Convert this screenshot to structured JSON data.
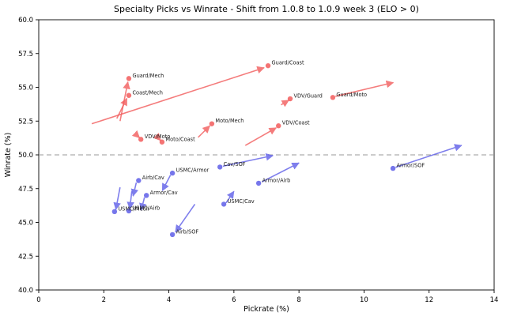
{
  "chart_data": {
    "type": "scatter",
    "title": "Specialty Picks vs Winrate - Shift from 1.0.8 to 1.0.9 week 3 (ELO > 0)",
    "xlabel": "Pickrate (%)",
    "ylabel": "Winrate (%)",
    "xlim": [
      0,
      14
    ],
    "ylim": [
      40.0,
      60.0
    ],
    "xticks": [
      0,
      2,
      4,
      6,
      8,
      10,
      12,
      14
    ],
    "yticks": [
      40.0,
      42.5,
      45.0,
      47.5,
      50.0,
      52.5,
      55.0,
      57.5,
      60.0
    ],
    "reference_line_y": 50.0,
    "legend_position": "none",
    "grid": false,
    "colors": {
      "above_50": "#f25c5c",
      "below_50": "#5e5ee8",
      "reference_line": "#999999",
      "axis": "#000000",
      "label_text": "#1a1a1a"
    },
    "points": [
      {
        "label": "Guard/Mech",
        "x": 2.77,
        "y": 55.65,
        "group": "above_50",
        "arrow": {
          "x1": 2.5,
          "y1": 52.5,
          "x2": 2.74,
          "y2": 55.4
        }
      },
      {
        "label": "Coast/Mech",
        "x": 2.77,
        "y": 54.4,
        "group": "above_50",
        "arrow": {
          "x1": 2.4,
          "y1": 52.7,
          "x2": 2.71,
          "y2": 54.18
        }
      },
      {
        "label": "Guard/Coast",
        "x": 7.05,
        "y": 56.6,
        "group": "above_50",
        "arrow": {
          "x1": 1.63,
          "y1": 52.3,
          "x2": 6.93,
          "y2": 56.45
        }
      },
      {
        "label": "VDV/Guard",
        "x": 7.73,
        "y": 54.15,
        "group": "above_50",
        "arrow": {
          "x1": 7.45,
          "y1": 53.7,
          "x2": 7.69,
          "y2": 54.05
        }
      },
      {
        "label": "Guard/Moto",
        "x": 9.04,
        "y": 54.25,
        "group": "above_50",
        "arrow": {
          "x1": 9.12,
          "y1": 54.33,
          "x2": 10.9,
          "y2": 55.35
        }
      },
      {
        "label": "Moto/Mech",
        "x": 5.32,
        "y": 52.3,
        "group": "above_50",
        "arrow": {
          "x1": 4.9,
          "y1": 51.3,
          "x2": 5.26,
          "y2": 52.15
        }
      },
      {
        "label": "VDV/Coast",
        "x": 7.37,
        "y": 52.15,
        "group": "above_50",
        "arrow": {
          "x1": 6.35,
          "y1": 50.7,
          "x2": 7.3,
          "y2": 52.0
        }
      },
      {
        "label": "VDV/Moto",
        "x": 3.14,
        "y": 51.15,
        "group": "above_50",
        "arrow": {
          "x1": 2.95,
          "y1": 51.6,
          "x2": 3.1,
          "y2": 51.26
        }
      },
      {
        "label": "Moto/Coast",
        "x": 3.79,
        "y": 50.95,
        "group": "above_50",
        "arrow": {
          "x1": 3.6,
          "y1": 51.45,
          "x2": 3.75,
          "y2": 51.06
        }
      },
      {
        "label": "Armor/SOF",
        "x": 10.89,
        "y": 49.0,
        "group": "below_50",
        "arrow": {
          "x1": 10.97,
          "y1": 49.08,
          "x2": 13.0,
          "y2": 50.7
        }
      },
      {
        "label": "Cav/SOF",
        "x": 5.57,
        "y": 49.1,
        "group": "below_50",
        "arrow": {
          "x1": 5.66,
          "y1": 49.16,
          "x2": 7.2,
          "y2": 49.95
        }
      },
      {
        "label": "USMC/Armor",
        "x": 4.11,
        "y": 48.65,
        "group": "below_50",
        "arrow": {
          "x1": 4.05,
          "y1": 48.5,
          "x2": 3.8,
          "y2": 47.35
        }
      },
      {
        "label": "Airb/Cav",
        "x": 3.07,
        "y": 48.1,
        "group": "below_50",
        "arrow": {
          "x1": 3.0,
          "y1": 47.95,
          "x2": 2.9,
          "y2": 46.95
        }
      },
      {
        "label": "Armor/Airb",
        "x": 6.76,
        "y": 47.9,
        "group": "below_50",
        "arrow": {
          "x1": 6.86,
          "y1": 48.0,
          "x2": 8.0,
          "y2": 49.4
        }
      },
      {
        "label": "Armor/Cav",
        "x": 3.31,
        "y": 47.0,
        "group": "below_50",
        "arrow": {
          "x1": 3.25,
          "y1": 46.85,
          "x2": 3.15,
          "y2": 45.9
        }
      },
      {
        "label": "USMC/Cav",
        "x": 5.69,
        "y": 46.35,
        "group": "below_50",
        "arrow": {
          "x1": 5.76,
          "y1": 46.45,
          "x2": 6.0,
          "y2": 47.3
        }
      },
      {
        "label": "USMC/Airb",
        "x": 2.77,
        "y": 45.85,
        "group": "below_50",
        "arrow": {
          "x1": 2.86,
          "y1": 47.3,
          "x2": 2.8,
          "y2": 46.0
        }
      },
      {
        "label": "USMC/Mech",
        "x": 2.33,
        "y": 45.8,
        "group": "below_50",
        "arrow": {
          "x1": 2.5,
          "y1": 47.6,
          "x2": 2.37,
          "y2": 45.95
        }
      },
      {
        "label": "Airb/SOF",
        "x": 4.11,
        "y": 44.1,
        "group": "below_50",
        "arrow": {
          "x1": 4.8,
          "y1": 46.35,
          "x2": 4.2,
          "y2": 44.28
        }
      }
    ]
  }
}
